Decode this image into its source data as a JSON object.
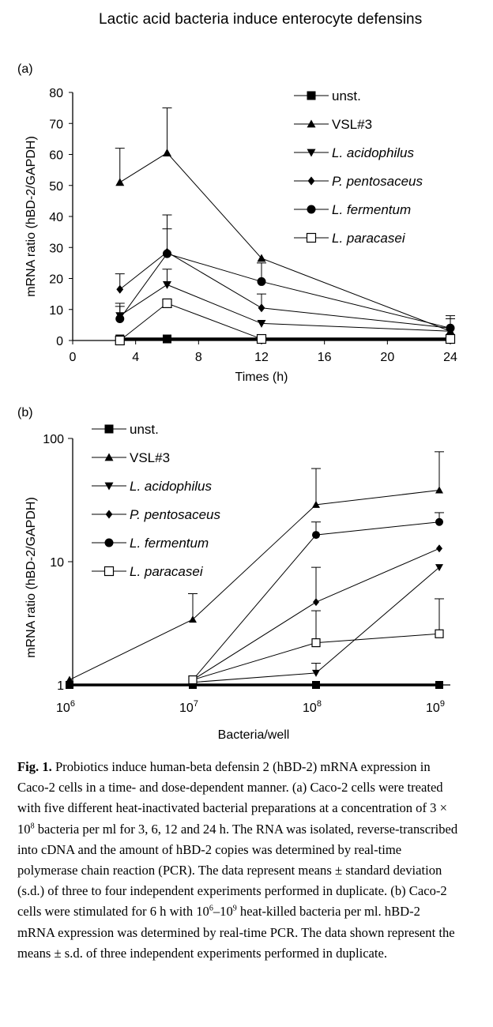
{
  "header": {
    "running_title": "Lactic acid bacteria induce enterocyte defensins"
  },
  "figure": {
    "panels": [
      {
        "label": "(a)"
      },
      {
        "label": "(b)"
      }
    ]
  },
  "colors": {
    "ink": "#000000",
    "background": "#ffffff"
  },
  "chart_data": [
    {
      "type": "line",
      "panel": "(a)",
      "title": "",
      "xlabel": "Times (h)",
      "ylabel": "mRNA ratio (hBD-2/GAPDH)",
      "xlim": [
        0,
        24
      ],
      "ylim": [
        0,
        80
      ],
      "xticks": [
        0,
        4,
        8,
        12,
        16,
        20,
        24
      ],
      "yticks": [
        0,
        10,
        20,
        30,
        40,
        50,
        60,
        70,
        80
      ],
      "x": [
        3,
        6,
        12,
        24
      ],
      "legend_position": "top-right",
      "series": [
        {
          "name": "unst.",
          "marker": "square-filled",
          "values": [
            0.5,
            0.5,
            0.5,
            0.5
          ],
          "errors": [
            null,
            null,
            null,
            null
          ]
        },
        {
          "name": "VSL#3",
          "marker": "triangle-up-filled",
          "values": [
            51,
            60.5,
            26.5,
            3
          ],
          "errors": [
            62,
            75,
            null,
            null
          ]
        },
        {
          "name": "L. acidophilus",
          "marker": "triangle-down-filled",
          "values": [
            8,
            18,
            5.5,
            3
          ],
          "errors": [
            11,
            23,
            null,
            null
          ]
        },
        {
          "name": "P. pentosaceus",
          "marker": "diamond-filled",
          "values": [
            16.5,
            28.5,
            10.5,
            4
          ],
          "errors": [
            21.5,
            36,
            15,
            7
          ]
        },
        {
          "name": "L. fermentum",
          "marker": "circle-filled",
          "values": [
            7,
            28,
            19,
            4
          ],
          "errors": [
            12,
            40.5,
            25,
            8
          ]
        },
        {
          "name": "L. paracasei",
          "marker": "square-open",
          "values": [
            0,
            12,
            0.5,
            0.5
          ],
          "errors": [
            null,
            null,
            null,
            null
          ]
        }
      ]
    },
    {
      "type": "line",
      "panel": "(b)",
      "title": "",
      "xlabel": "Bacteria/well",
      "ylabel": "mRNA ratio (hBD-2/GAPDH)",
      "yscale": "log",
      "ylim": [
        1,
        100
      ],
      "ytick_labels": [
        "1",
        "10",
        "100"
      ],
      "xscale": "log",
      "xlim": [
        1000000,
        1000000000
      ],
      "xtick_labels": [
        {
          "base": "10",
          "exp": "6"
        },
        {
          "base": "10",
          "exp": "7"
        },
        {
          "base": "10",
          "exp": "8"
        },
        {
          "base": "10",
          "exp": "9"
        }
      ],
      "legend_position": "top-left",
      "series": [
        {
          "name": "unst.",
          "marker": "square-filled",
          "points": [
            [
              6,
              1.0
            ],
            [
              7,
              1.0
            ],
            [
              8,
              1.0
            ],
            [
              9,
              1.0
            ]
          ],
          "errors": []
        },
        {
          "name": "VSL#3",
          "marker": "triangle-up-filled",
          "points": [
            [
              6,
              1.1
            ],
            [
              7,
              3.4
            ],
            [
              8,
              29
            ],
            [
              9,
              38
            ]
          ],
          "errors": [
            [
              7,
              5.5
            ],
            [
              8,
              57
            ],
            [
              9,
              78
            ]
          ]
        },
        {
          "name": "L. acidophilus",
          "marker": "triangle-down-filled",
          "points": [
            [
              7,
              1.05
            ],
            [
              8,
              1.25
            ],
            [
              9,
              9
            ]
          ],
          "errors": [
            [
              8,
              1.5
            ]
          ]
        },
        {
          "name": "P. pentosaceus",
          "marker": "diamond-filled",
          "points": [
            [
              7,
              1.1
            ],
            [
              8,
              4.7
            ],
            [
              9,
              12.8
            ]
          ],
          "errors": [
            [
              8,
              9
            ]
          ]
        },
        {
          "name": "L. fermentum",
          "marker": "circle-filled",
          "points": [
            [
              7,
              1.1
            ],
            [
              8,
              16.5
            ],
            [
              9,
              21
            ]
          ],
          "errors": [
            [
              8,
              21
            ],
            [
              9,
              25
            ]
          ]
        },
        {
          "name": "L. paracasei",
          "marker": "square-open",
          "points": [
            [
              7,
              1.1
            ],
            [
              8,
              2.2
            ],
            [
              9,
              2.6
            ]
          ],
          "errors": [
            [
              8,
              4
            ],
            [
              9,
              5
            ]
          ]
        }
      ]
    }
  ],
  "caption": {
    "label": "Fig. 1.",
    "p1": "Probiotics induce human-beta defensin 2 (hBD-2) mRNA expression in Caco-2 cells in a time- and dose-dependent manner. (a) Caco-2 cells were treated with five different heat-inactivated bacterial preparations at a concentration of 3 × 10",
    "sup1": "8",
    "p2": " bacteria per ml for 3, 6, 12 and 24 h. The RNA was isolated, reverse-transcribed into cDNA and the amount of hBD-2 copies was determined by real-time polymerase chain reaction (PCR). The data represent means ± standard deviation (s.d.) of three to four independent experiments performed in duplicate. (b) Caco-2 cells were stimulated for 6 h with 10",
    "sup2": "6",
    "p3": "–10",
    "sup3": "9",
    "p4": " heat-killed bacteria per ml. hBD-2 mRNA expression was determined by real-time PCR. The data shown represent the means ± s.d. of three independent experiments performed in duplicate."
  }
}
